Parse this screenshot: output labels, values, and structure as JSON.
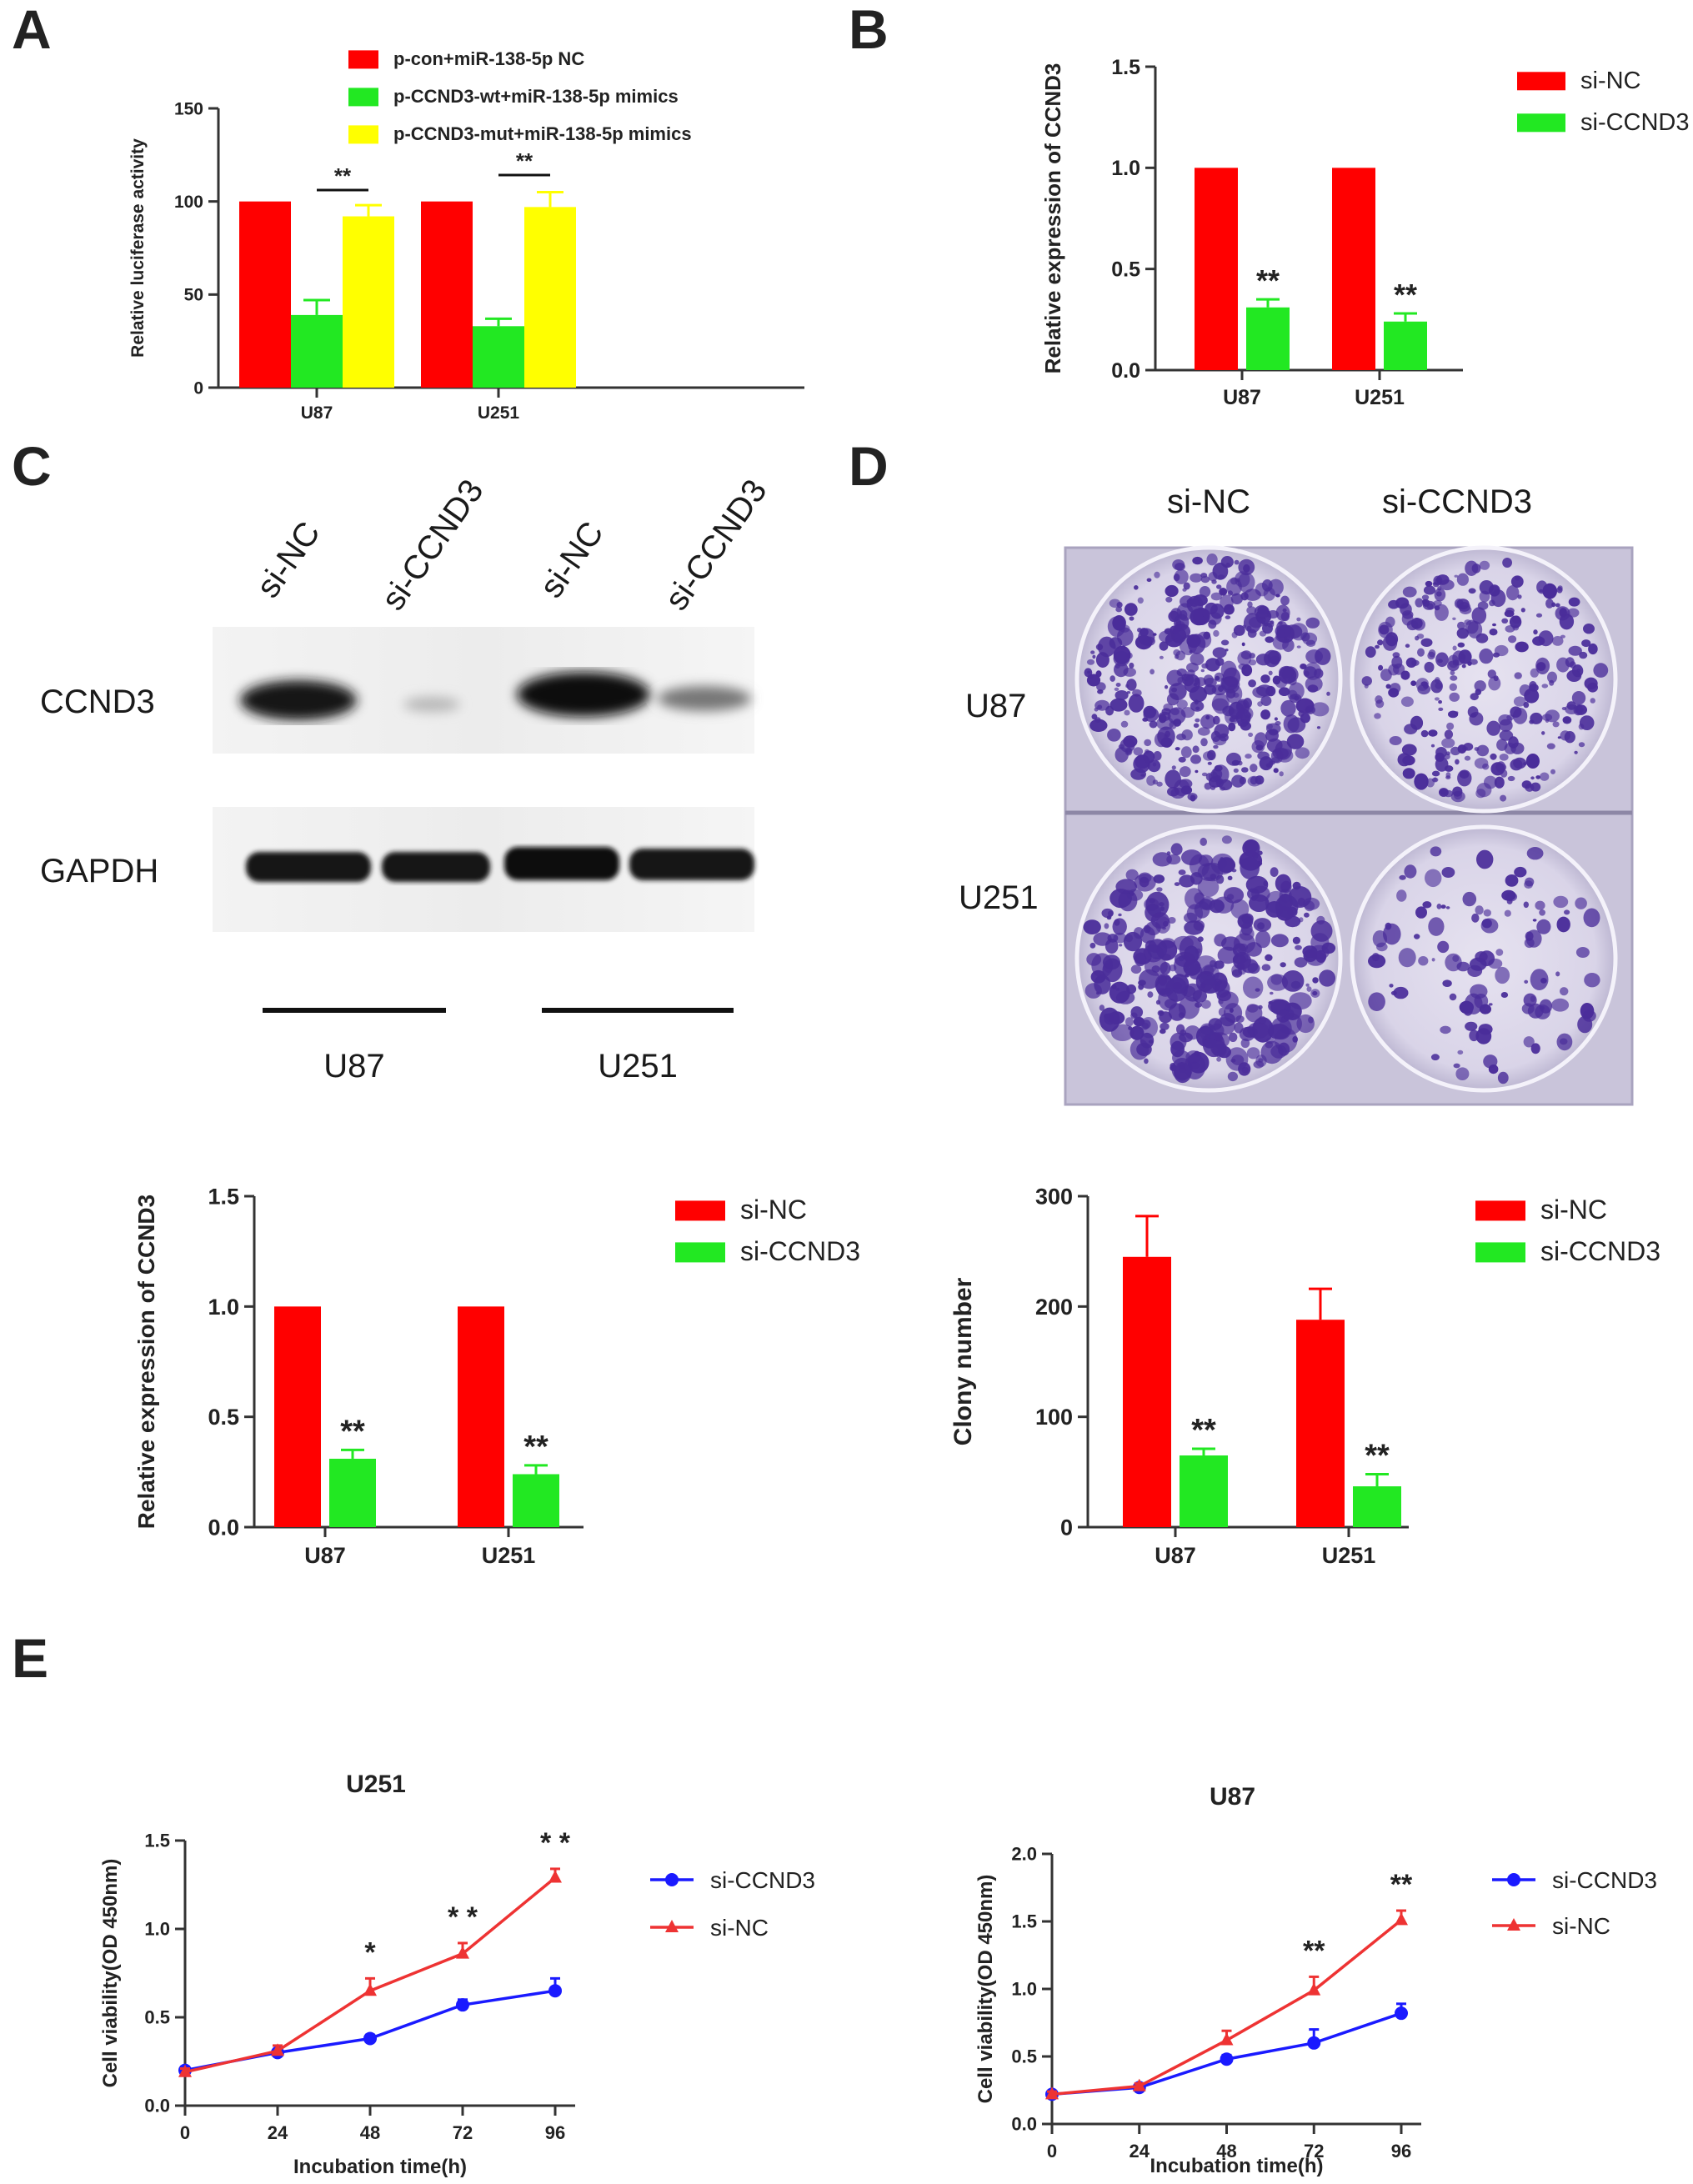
{
  "figure": {
    "panels": {
      "A": {
        "label": "A"
      },
      "B": {
        "label": "B"
      },
      "C": {
        "label": "C",
        "blot": {
          "lanes": [
            "si-NC",
            "si-CCND3",
            "si-NC",
            "si-CCND3"
          ],
          "rows": [
            "CCND3",
            "GAPDH"
          ],
          "groups": [
            "U87",
            "U251"
          ]
        }
      },
      "D": {
        "label": "D",
        "plate": {
          "columns": [
            "si-NC",
            "si-CCND3"
          ],
          "rows": [
            "U87",
            "U251"
          ]
        }
      },
      "E": {
        "label": "E"
      }
    }
  },
  "colors": {
    "red": "#ff0000",
    "green": "#22e822",
    "yellow": "#ffff00",
    "blue": "#1a1aff",
    "line_red": "#ee3333",
    "axis": "#333333",
    "colony": "#4a2d9a",
    "plate_bg": "#cfcbe0"
  },
  "chart_data": [
    {
      "id": "A",
      "type": "bar",
      "title": "",
      "xlabel": "",
      "ylabel": "Relative luciferase activity",
      "ylim": [
        0,
        150
      ],
      "yticks": [
        0,
        50,
        100,
        150
      ],
      "categories": [
        "U87",
        "U251"
      ],
      "series": [
        {
          "name": "p-con+miR-138-5p NC",
          "color": "#ff0000",
          "values": [
            100,
            100
          ],
          "errors": [
            0,
            0
          ]
        },
        {
          "name": "p-CCND3-wt+miR-138-5p mimics",
          "color": "#22e822",
          "values": [
            39,
            33
          ],
          "errors": [
            8,
            4
          ]
        },
        {
          "name": "p-CCND3-mut+miR-138-5p mimics",
          "color": "#ffff00",
          "values": [
            92,
            97
          ],
          "errors": [
            6,
            8
          ]
        }
      ],
      "significance": [
        {
          "category": "U87",
          "from": 1,
          "to": 2,
          "label": "**"
        },
        {
          "category": "U251",
          "from": 1,
          "to": 2,
          "label": "**"
        }
      ],
      "legend": "top"
    },
    {
      "id": "B",
      "type": "bar",
      "title": "",
      "xlabel": "",
      "ylabel": "Relative expression of CCND3",
      "ylim": [
        0,
        1.5
      ],
      "yticks": [
        "0.0",
        "0.5",
        "1.0",
        "1.5"
      ],
      "categories": [
        "U87",
        "U251"
      ],
      "series": [
        {
          "name": "si-NC",
          "color": "#ff0000",
          "values": [
            1.0,
            1.0
          ],
          "errors": [
            0,
            0
          ],
          "marks": [
            "",
            ""
          ]
        },
        {
          "name": "si-CCND3",
          "color": "#22e822",
          "values": [
            0.31,
            0.24
          ],
          "errors": [
            0.04,
            0.04
          ],
          "marks": [
            "**",
            "**"
          ]
        }
      ],
      "legend": "right"
    },
    {
      "id": "C-quant",
      "type": "bar",
      "title": "",
      "xlabel": "",
      "ylabel": "Relative expression of CCND3",
      "ylim": [
        0,
        1.5
      ],
      "yticks": [
        "0.0",
        "0.5",
        "1.0",
        "1.5"
      ],
      "categories": [
        "U87",
        "U251"
      ],
      "series": [
        {
          "name": "si-NC",
          "color": "#ff0000",
          "values": [
            1.0,
            1.0
          ],
          "errors": [
            0,
            0
          ],
          "marks": [
            "",
            ""
          ]
        },
        {
          "name": "si-CCND3",
          "color": "#22e822",
          "values": [
            0.31,
            0.24
          ],
          "errors": [
            0.04,
            0.04
          ],
          "marks": [
            "**",
            "**"
          ]
        }
      ],
      "legend": "right"
    },
    {
      "id": "D-quant",
      "type": "bar",
      "title": "",
      "xlabel": "",
      "ylabel": "Clony number",
      "ylim": [
        0,
        300
      ],
      "yticks": [
        0,
        100,
        200,
        300
      ],
      "categories": [
        "U87",
        "U251"
      ],
      "series": [
        {
          "name": "si-NC",
          "color": "#ff0000",
          "values": [
            245,
            188
          ],
          "errors": [
            37,
            28
          ],
          "marks": [
            "",
            ""
          ]
        },
        {
          "name": "si-CCND3",
          "color": "#22e822",
          "values": [
            65,
            37
          ],
          "errors": [
            6,
            11
          ],
          "marks": [
            "**",
            "**"
          ]
        }
      ],
      "legend": "right"
    },
    {
      "id": "E-U251",
      "type": "line",
      "title": "U251",
      "xlabel": "Incubation time(h)",
      "ylabel": "Cell viability(OD 450nm)",
      "x": [
        0,
        24,
        48,
        72,
        96
      ],
      "xticks": [
        0,
        24,
        48,
        72,
        96
      ],
      "ylim": [
        0,
        1.5
      ],
      "yticks": [
        "0.0",
        "0.5",
        "1.0",
        "1.5"
      ],
      "series": [
        {
          "name": "si-CCND3",
          "color": "#1a1aff",
          "marker": "circle",
          "values": [
            0.2,
            0.3,
            0.38,
            0.57,
            0.65
          ],
          "errors": [
            0.02,
            0.02,
            0.02,
            0.03,
            0.07
          ]
        },
        {
          "name": "si-NC",
          "color": "#ee3333",
          "marker": "triangle",
          "values": [
            0.19,
            0.31,
            0.65,
            0.86,
            1.29
          ],
          "errors": [
            0.02,
            0.03,
            0.07,
            0.06,
            0.05
          ]
        }
      ],
      "significance": [
        {
          "x": 48,
          "label": "*"
        },
        {
          "x": 72,
          "label": "* *"
        },
        {
          "x": 96,
          "label": "* *"
        }
      ],
      "legend": "right"
    },
    {
      "id": "E-U87",
      "type": "line",
      "title": "U87",
      "xlabel": "Incubation time(h)",
      "ylabel": "Cell viability(OD 450nm)",
      "x": [
        0,
        24,
        48,
        72,
        96
      ],
      "xticks": [
        0,
        24,
        48,
        72,
        96
      ],
      "ylim": [
        0,
        2.0
      ],
      "yticks": [
        "0.0",
        "0.5",
        "1.0",
        "1.5",
        "2.0"
      ],
      "series": [
        {
          "name": "si-CCND3",
          "color": "#1a1aff",
          "marker": "circle",
          "values": [
            0.22,
            0.27,
            0.48,
            0.6,
            0.82
          ],
          "errors": [
            0.02,
            0.02,
            0.03,
            0.1,
            0.07
          ]
        },
        {
          "name": "si-NC",
          "color": "#ee3333",
          "marker": "triangle",
          "values": [
            0.22,
            0.28,
            0.62,
            0.99,
            1.51
          ],
          "errors": [
            0.02,
            0.02,
            0.07,
            0.1,
            0.07
          ]
        }
      ],
      "significance": [
        {
          "x": 72,
          "label": "**"
        },
        {
          "x": 96,
          "label": "**"
        }
      ],
      "legend": "right"
    }
  ]
}
